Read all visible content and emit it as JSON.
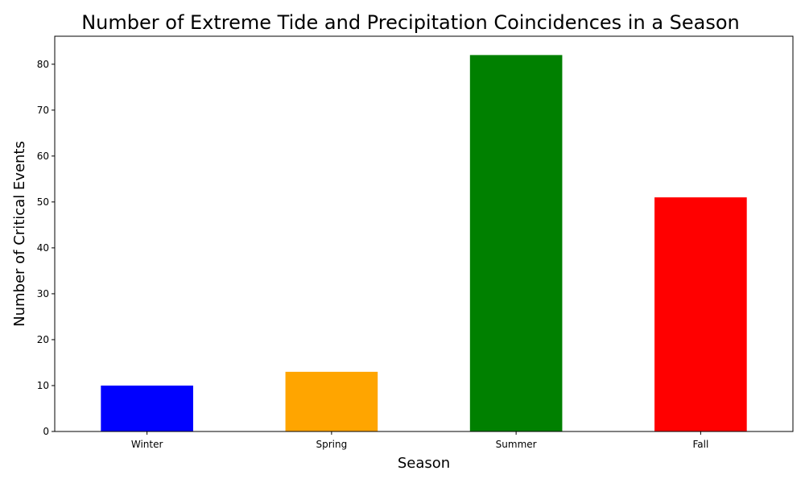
{
  "chart_data": {
    "type": "bar",
    "title": "Number of Extreme Tide and Precipitation Coincidences in a Season",
    "xlabel": "Season",
    "ylabel": "Number of Critical Events",
    "categories": [
      "Winter",
      "Spring",
      "Summer",
      "Fall"
    ],
    "values": [
      10,
      13,
      82,
      51
    ],
    "colors": [
      "#0000ff",
      "#ffa500",
      "#008000",
      "#ff0000"
    ],
    "ylim": [
      0,
      86.1
    ],
    "yticks": [
      0,
      10,
      20,
      30,
      40,
      50,
      60,
      70,
      80
    ],
    "grid": false,
    "legend": "none"
  }
}
